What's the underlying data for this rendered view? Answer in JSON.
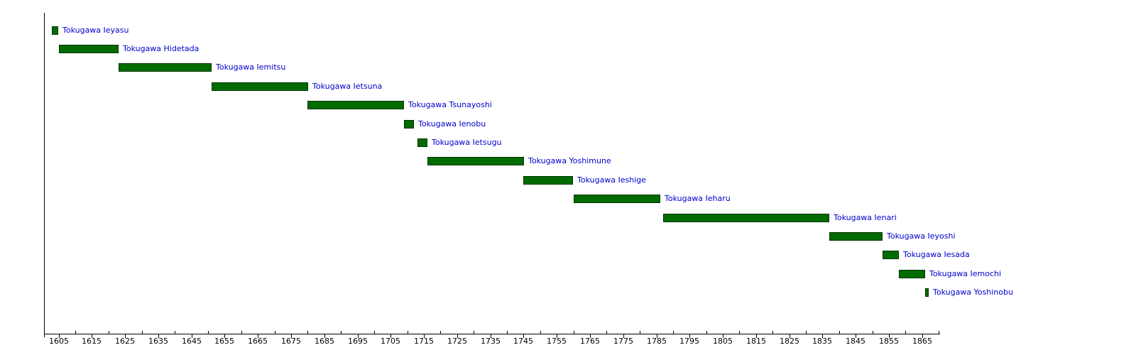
{
  "chart_data": {
    "type": "bar",
    "variant": "horizontal-timeline-gantt",
    "title": "",
    "xlabel": "",
    "ylabel": "",
    "xlim": [
      1600.6,
      1870.4
    ],
    "grid": false,
    "legend": false,
    "x_major_tick_interval": 10,
    "x_minor_tick_interval": 5,
    "x_major_tick_labels": [
      "1605",
      "1615",
      "1625",
      "1635",
      "1645",
      "1655",
      "1665",
      "1675",
      "1685",
      "1695",
      "1705",
      "1715",
      "1725",
      "1735",
      "1745",
      "1755",
      "1765",
      "1775",
      "1785",
      "1795",
      "1805",
      "1815",
      "1825",
      "1835",
      "1845",
      "1855",
      "1865"
    ],
    "x_major_tick_years": [
      1605,
      1615,
      1625,
      1635,
      1645,
      1655,
      1665,
      1675,
      1685,
      1695,
      1705,
      1715,
      1725,
      1735,
      1745,
      1755,
      1765,
      1775,
      1785,
      1795,
      1805,
      1815,
      1825,
      1835,
      1845,
      1855,
      1865
    ],
    "x_minor_tick_years": [
      1610,
      1620,
      1630,
      1640,
      1650,
      1660,
      1670,
      1680,
      1690,
      1700,
      1710,
      1720,
      1730,
      1740,
      1750,
      1760,
      1770,
      1780,
      1790,
      1800,
      1810,
      1820,
      1830,
      1840,
      1850,
      1860,
      1870
    ],
    "bars": [
      {
        "label": "Tokugawa Ieyasu",
        "start": 1603,
        "end": 1605
      },
      {
        "label": "Tokugawa Hidetada",
        "start": 1605,
        "end": 1623
      },
      {
        "label": "Tokugawa Iemitsu",
        "start": 1623,
        "end": 1651
      },
      {
        "label": "Tokugawa Ietsuna",
        "start": 1651,
        "end": 1680
      },
      {
        "label": "Tokugawa Tsunayoshi",
        "start": 1680,
        "end": 1709
      },
      {
        "label": "Tokugawa Ienobu",
        "start": 1709,
        "end": 1712
      },
      {
        "label": "Tokugawa Ietsugu",
        "start": 1713,
        "end": 1716
      },
      {
        "label": "Tokugawa Yoshimune",
        "start": 1716,
        "end": 1745
      },
      {
        "label": "Tokugawa Ieshige",
        "start": 1745,
        "end": 1760
      },
      {
        "label": "Tokugawa Ieharu",
        "start": 1760,
        "end": 1786
      },
      {
        "label": "Tokugawa Ienari",
        "start": 1787,
        "end": 1837
      },
      {
        "label": "Tokugawa Ieyoshi",
        "start": 1837,
        "end": 1853
      },
      {
        "label": "Tokugawa Iesada",
        "start": 1853,
        "end": 1858
      },
      {
        "label": "Tokugawa Iemochi",
        "start": 1858,
        "end": 1866
      },
      {
        "label": "Tokugawa Yoshinobu",
        "start": 1866,
        "end": 1867
      }
    ],
    "colors": {
      "bar_fill": "#006B00",
      "bar_border": "#023302",
      "bar_label": "#0000CC",
      "axis": "#000000",
      "tick_label": "#000000",
      "background": "#FFFFFF"
    }
  }
}
